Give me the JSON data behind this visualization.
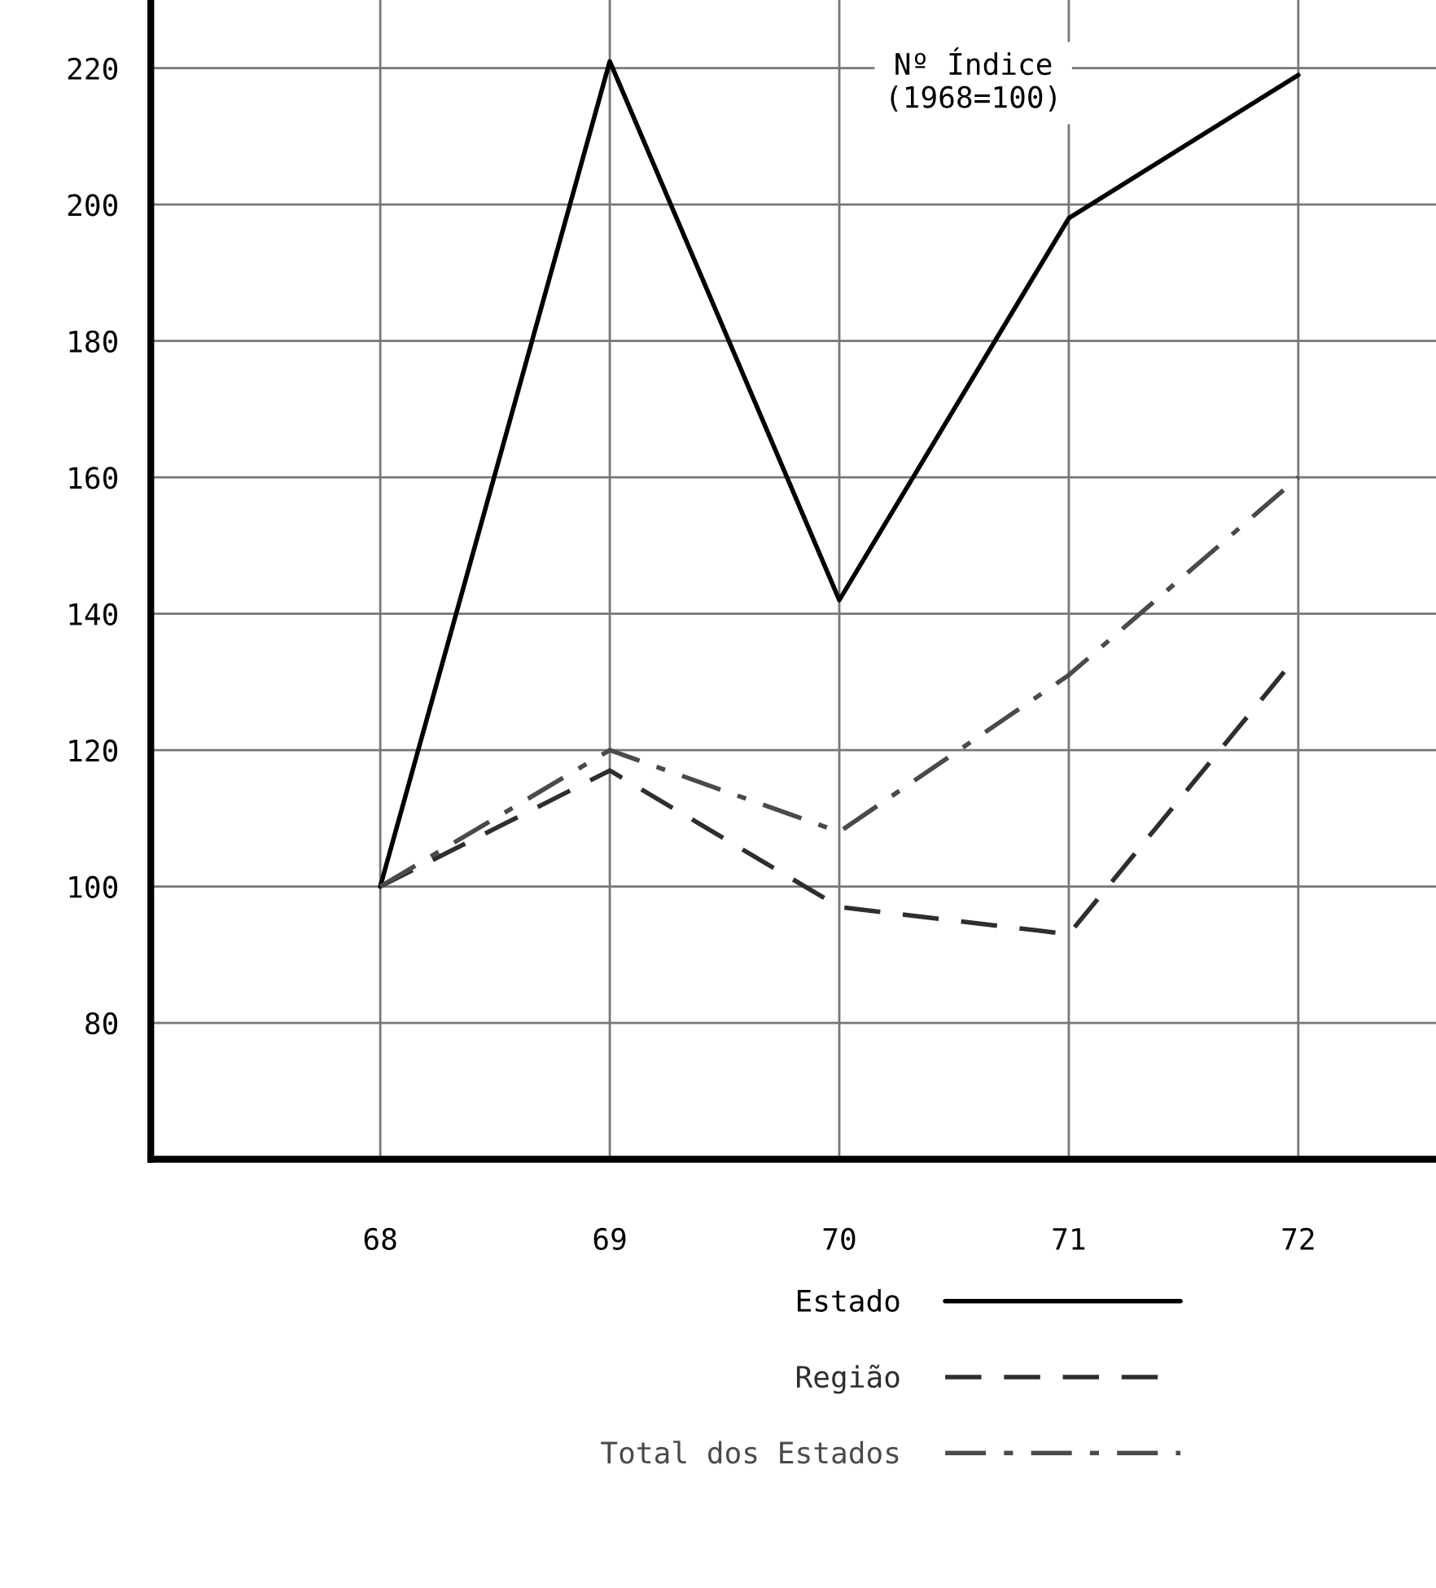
{
  "chart_data": {
    "type": "line",
    "x": [
      68,
      69,
      70,
      71,
      72
    ],
    "series": [
      {
        "name": "Estado",
        "color": "#000000",
        "line_style": "solid",
        "values": [
          100,
          221,
          142,
          198,
          219
        ]
      },
      {
        "name": "Região",
        "color": "#2e2e2e",
        "line_style": "dashed",
        "values": [
          100,
          117,
          97,
          93,
          134
        ]
      },
      {
        "name": "Total dos Estados",
        "color": "#4a4a4a",
        "line_style": "dashdot",
        "values": [
          100,
          120,
          108,
          131,
          160
        ]
      }
    ],
    "annotations": [
      "Nº Índice\n(1968=100)"
    ],
    "xlim": [
      67,
      72.6
    ],
    "ylim": [
      60,
      230
    ],
    "xticks": [
      68,
      69,
      70,
      71,
      72
    ],
    "yticks": [
      80,
      100,
      120,
      140,
      160,
      180,
      200,
      220
    ],
    "grid": true,
    "legend": "bottom",
    "marker": "none"
  }
}
